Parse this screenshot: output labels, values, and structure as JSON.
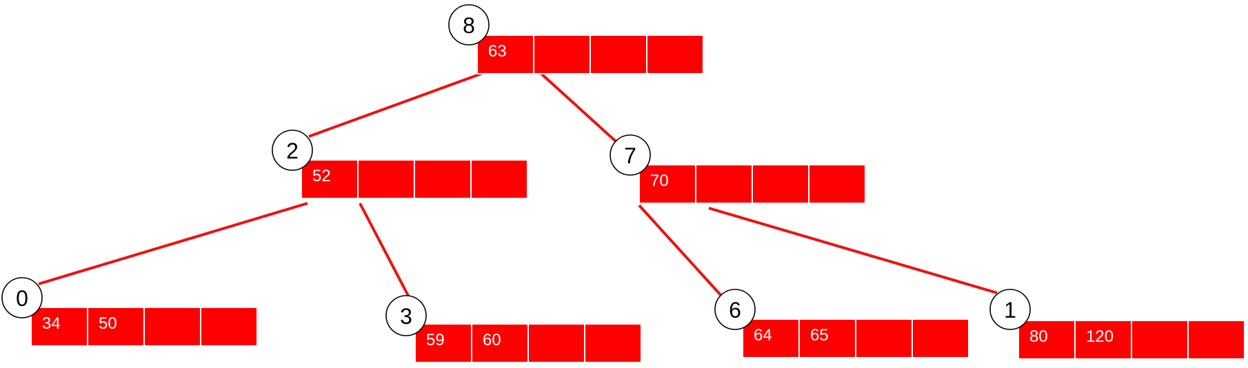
{
  "colors": {
    "cell_fill": "#ff0000",
    "cell_border": "#ffffff",
    "edge": "#ee1111",
    "id_circle_border": "#000000",
    "id_circle_fill": "#ffffff",
    "key_text": "#ffffff",
    "id_text": "#000000"
  },
  "diagram": {
    "nodes": [
      {
        "id": "8",
        "keys": [
          "63",
          "",
          "",
          ""
        ]
      },
      {
        "id": "2",
        "keys": [
          "52",
          "",
          "",
          ""
        ]
      },
      {
        "id": "7",
        "keys": [
          "70",
          "",
          "",
          ""
        ]
      },
      {
        "id": "0",
        "keys": [
          "34",
          "50",
          "",
          ""
        ]
      },
      {
        "id": "3",
        "keys": [
          "59",
          "60",
          "",
          ""
        ]
      },
      {
        "id": "6",
        "keys": [
          "64",
          "65",
          "",
          ""
        ]
      },
      {
        "id": "1",
        "keys": [
          "80",
          "120",
          "",
          ""
        ]
      }
    ],
    "edges": [
      {
        "from": "8",
        "to": "2"
      },
      {
        "from": "8",
        "to": "7"
      },
      {
        "from": "2",
        "to": "0"
      },
      {
        "from": "2",
        "to": "3"
      },
      {
        "from": "7",
        "to": "6"
      },
      {
        "from": "7",
        "to": "1"
      }
    ]
  }
}
